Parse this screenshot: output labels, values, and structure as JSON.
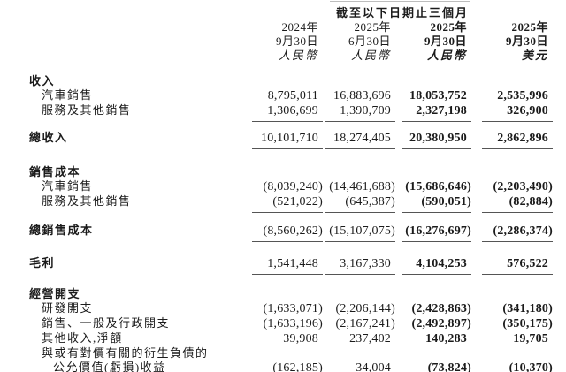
{
  "colors": {
    "text": "#1b1b1b",
    "rule": "#555555",
    "topline": "#bdbdbd"
  },
  "header": {
    "period_title": "截至以下日期止三個月",
    "columns": [
      {
        "year": "2024年",
        "date": "9月30日",
        "currency": "人民幣"
      },
      {
        "year": "2025年",
        "date": "6月30日",
        "currency": "人民幣"
      },
      {
        "year": "2025年",
        "date": "9月30日",
        "currency": "人民幣"
      },
      {
        "year": "2025年",
        "date": "9月30日",
        "currency": "美元"
      }
    ]
  },
  "rows": [
    {
      "label": "收入"
    },
    {
      "label": "汽車銷售",
      "v": [
        "8,795,011",
        "16,883,696",
        "18,053,752",
        "2,535,996"
      ]
    },
    {
      "label": "服務及其他銷售",
      "v": [
        "1,306,699",
        "1,390,709",
        "2,327,198",
        "326,900"
      ]
    },
    {
      "label": "總收入",
      "v": [
        "10,101,710",
        "18,274,405",
        "20,380,950",
        "2,862,896"
      ]
    },
    {
      "label": "銷售成本"
    },
    {
      "label": "汽車銷售",
      "v": [
        "(8,039,240)",
        "(14,461,688)",
        "(15,686,646)",
        "(2,203,490)"
      ]
    },
    {
      "label": "服務及其他銷售",
      "v": [
        "(521,022)",
        "(645,387)",
        "(590,051)",
        "(82,884)"
      ]
    },
    {
      "label": "總銷售成本",
      "v": [
        "(8,560,262)",
        "(15,107,075)",
        "(16,276,697)",
        "(2,286,374)"
      ]
    },
    {
      "label": "毛利",
      "v": [
        "1,541,448",
        "3,167,330",
        "4,104,253",
        "576,522"
      ]
    },
    {
      "label": "經營開支"
    },
    {
      "label": "研發開支",
      "v": [
        "(1,633,071)",
        "(2,206,144)",
        "(2,428,863)",
        "(341,180)"
      ]
    },
    {
      "label": "銷售、一般及行政開支",
      "v": [
        "(1,633,196)",
        "(2,167,241)",
        "(2,492,897)",
        "(350,175)"
      ]
    },
    {
      "label": "其他收入,淨額",
      "v": [
        "39,908",
        "237,402",
        "140,283",
        "19,705"
      ]
    },
    {
      "label": "與或有對價有關的衍生負債的"
    },
    {
      "label": "公允價值(虧損)收益",
      "v": [
        "(162,185)",
        "34,004",
        "(73,824)",
        "(10,370)"
      ]
    }
  ]
}
